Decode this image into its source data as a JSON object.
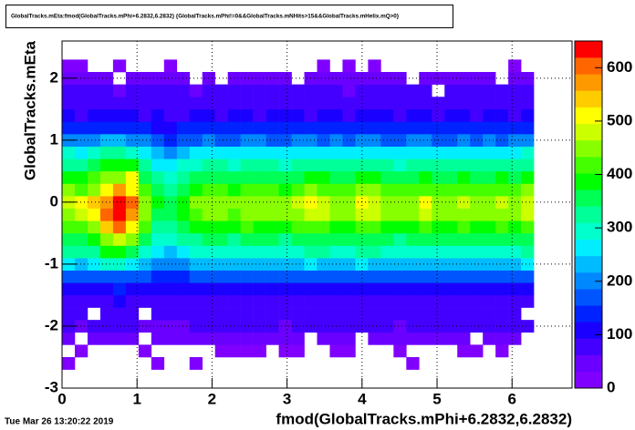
{
  "chart_data": {
    "type": "heatmap",
    "title": "GlobalTracks.mEta:fmod(GlobalTracks.mPhi+6.2832,6.2832) {GlobalTracks.mPhi!=0&&GlobalTracks.mNHits>15&&GlobalTracks.mHelix.mQ>0}",
    "xlabel": "fmod(GlobalTracks.mPhi+6.2832,6.2832)",
    "ylabel": "GlobalTracks.mEta",
    "timestamp": "Tue Mar 26 13:20:22 2019",
    "xlim": [
      0,
      6.8
    ],
    "ylim": [
      -3,
      2.6
    ],
    "zlim": [
      0,
      650
    ],
    "xticks": [
      0,
      1,
      2,
      3,
      4,
      5,
      6
    ],
    "yticks": [
      -3,
      -2,
      -1,
      0,
      1,
      2
    ],
    "zticks": [
      0,
      100,
      200,
      300,
      400,
      500,
      600
    ],
    "grid": true,
    "palette": [
      "#8000ff",
      "#6a00ff",
      "#4400ff",
      "#1a00ff",
      "#0022ff",
      "#0055ff",
      "#0088ff",
      "#00bbff",
      "#00eeff",
      "#00ffcc",
      "#00ff99",
      "#00ff55",
      "#00ff00",
      "#44ff00",
      "#88ff00",
      "#ccff00",
      "#ffff00",
      "#ffcc00",
      "#ff9900",
      "#ff6600",
      "#ff0000"
    ],
    "xbins": [
      0,
      0.17,
      0.34,
      0.51,
      0.68,
      0.85,
      1.02,
      1.19,
      1.36,
      1.53,
      1.7,
      1.87,
      2.04,
      2.21,
      2.38,
      2.55,
      2.72,
      2.89,
      3.06,
      3.23,
      3.4,
      3.57,
      3.74,
      3.91,
      4.08,
      4.25,
      4.42,
      4.59,
      4.76,
      4.93,
      5.1,
      5.27,
      5.44,
      5.61,
      5.78,
      5.95,
      6.12,
      6.29
    ],
    "ybins": [
      -2.7,
      -2.5,
      -2.3,
      -2.1,
      -1.9,
      -1.7,
      -1.5,
      -1.3,
      -1.1,
      -0.9,
      -0.7,
      -0.5,
      -0.3,
      -0.1,
      0.1,
      0.3,
      0.5,
      0.7,
      0.9,
      1.1,
      1.3,
      1.5,
      1.7,
      1.9,
      2.1,
      2.3
    ],
    "z": [
      [
        20,
        0,
        0,
        0,
        0,
        0,
        0,
        20,
        0,
        0,
        20,
        0,
        0,
        0,
        0,
        0,
        0,
        0,
        0,
        0,
        0,
        0,
        0,
        0,
        0,
        0,
        0,
        20,
        0,
        0,
        0,
        0,
        0,
        0,
        0,
        0,
        0
      ],
      [
        0,
        20,
        0,
        0,
        0,
        0,
        20,
        0,
        0,
        0,
        0,
        0,
        20,
        20,
        20,
        20,
        0,
        20,
        20,
        0,
        0,
        20,
        20,
        0,
        0,
        0,
        20,
        0,
        0,
        0,
        0,
        20,
        20,
        0,
        20,
        0,
        0
      ],
      [
        55,
        0,
        52,
        58,
        60,
        55,
        0,
        50,
        48,
        52,
        54,
        56,
        55,
        54,
        56,
        55,
        54,
        52,
        56,
        0,
        55,
        54,
        56,
        0,
        57,
        55,
        52,
        54,
        56,
        54,
        55,
        56,
        0,
        55,
        56,
        54,
        0
      ],
      [
        65,
        60,
        62,
        68,
        70,
        65,
        60,
        58,
        55,
        60,
        62,
        65,
        63,
        62,
        65,
        63,
        62,
        60,
        65,
        66,
        65,
        63,
        62,
        66,
        65,
        63,
        60,
        62,
        65,
        62,
        63,
        65,
        62,
        63,
        65,
        62,
        65
      ],
      [
        75,
        70,
        0,
        78,
        80,
        75,
        0,
        68,
        65,
        70,
        72,
        75,
        73,
        72,
        75,
        73,
        72,
        70,
        75,
        76,
        75,
        73,
        72,
        76,
        75,
        73,
        70,
        72,
        75,
        72,
        73,
        75,
        72,
        73,
        75,
        72,
        0
      ],
      [
        90,
        85,
        88,
        92,
        95,
        90,
        85,
        80,
        78,
        82,
        85,
        88,
        86,
        85,
        88,
        86,
        85,
        84,
        88,
        90,
        88,
        86,
        85,
        90,
        88,
        86,
        84,
        85,
        88,
        85,
        86,
        88,
        85,
        86,
        88,
        85,
        90
      ],
      [
        115,
        110,
        118,
        120,
        125,
        118,
        110,
        100,
        95,
        105,
        110,
        112,
        110,
        108,
        114,
        112,
        110,
        108,
        114,
        116,
        114,
        112,
        110,
        116,
        114,
        112,
        108,
        110,
        114,
        110,
        112,
        114,
        110,
        112,
        114,
        110,
        116
      ],
      [
        165,
        160,
        170,
        180,
        185,
        175,
        160,
        140,
        135,
        145,
        155,
        160,
        158,
        155,
        162,
        160,
        158,
        155,
        162,
        165,
        162,
        160,
        158,
        165,
        162,
        160,
        155,
        158,
        162,
        158,
        160,
        162,
        158,
        160,
        162,
        158,
        165
      ],
      [
        250,
        245,
        260,
        280,
        290,
        270,
        240,
        200,
        190,
        205,
        230,
        240,
        235,
        230,
        245,
        240,
        235,
        230,
        245,
        250,
        245,
        240,
        235,
        250,
        245,
        240,
        230,
        235,
        245,
        235,
        240,
        245,
        235,
        240,
        245,
        235,
        250
      ],
      [
        310,
        315,
        340,
        380,
        400,
        370,
        300,
        250,
        240,
        260,
        290,
        300,
        295,
        290,
        305,
        300,
        295,
        290,
        305,
        315,
        310,
        300,
        295,
        315,
        310,
        300,
        290,
        295,
        305,
        295,
        300,
        305,
        295,
        300,
        305,
        295,
        315
      ],
      [
        360,
        370,
        400,
        460,
        480,
        450,
        360,
        300,
        290,
        310,
        340,
        350,
        345,
        340,
        355,
        350,
        345,
        340,
        360,
        370,
        365,
        350,
        345,
        370,
        365,
        350,
        340,
        345,
        360,
        345,
        350,
        360,
        345,
        350,
        360,
        345,
        370
      ],
      [
        410,
        420,
        460,
        540,
        600,
        520,
        410,
        340,
        330,
        350,
        390,
        400,
        395,
        390,
        405,
        400,
        395,
        390,
        410,
        420,
        415,
        400,
        395,
        420,
        415,
        400,
        390,
        395,
        410,
        395,
        400,
        410,
        395,
        400,
        410,
        395,
        420
      ],
      [
        460,
        480,
        520,
        590,
        620,
        580,
        450,
        370,
        360,
        380,
        430,
        450,
        440,
        430,
        450,
        445,
        440,
        435,
        460,
        480,
        470,
        450,
        445,
        490,
        480,
        450,
        435,
        445,
        470,
        440,
        450,
        460,
        440,
        450,
        460,
        445,
        470
      ],
      [
        470,
        500,
        540,
        580,
        630,
        600,
        460,
        380,
        370,
        390,
        440,
        460,
        450,
        440,
        460,
        455,
        450,
        445,
        470,
        500,
        480,
        460,
        455,
        500,
        490,
        460,
        445,
        455,
        500,
        450,
        460,
        470,
        450,
        460,
        470,
        455,
        480
      ],
      [
        440,
        430,
        460,
        500,
        560,
        520,
        420,
        350,
        340,
        360,
        400,
        420,
        410,
        400,
        420,
        415,
        410,
        400,
        420,
        440,
        430,
        420,
        415,
        440,
        435,
        420,
        405,
        415,
        430,
        410,
        420,
        430,
        410,
        420,
        430,
        415,
        440
      ],
      [
        390,
        380,
        410,
        440,
        460,
        500,
        370,
        310,
        300,
        320,
        350,
        370,
        360,
        355,
        370,
        365,
        360,
        350,
        370,
        380,
        375,
        365,
        360,
        385,
        380,
        370,
        355,
        365,
        380,
        360,
        370,
        375,
        360,
        370,
        380,
        365,
        390
      ],
      [
        340,
        330,
        360,
        380,
        400,
        380,
        320,
        270,
        260,
        280,
        300,
        320,
        310,
        305,
        320,
        315,
        310,
        300,
        320,
        330,
        325,
        315,
        310,
        330,
        325,
        320,
        305,
        315,
        330,
        310,
        320,
        325,
        310,
        320,
        330,
        315,
        340
      ],
      [
        280,
        270,
        290,
        310,
        320,
        300,
        260,
        220,
        210,
        230,
        250,
        260,
        255,
        250,
        265,
        260,
        255,
        250,
        260,
        270,
        265,
        260,
        255,
        270,
        265,
        260,
        250,
        260,
        270,
        255,
        260,
        265,
        250,
        260,
        270,
        255,
        280
      ],
      [
        200,
        190,
        210,
        220,
        230,
        215,
        190,
        160,
        150,
        170,
        180,
        190,
        185,
        180,
        195,
        190,
        185,
        180,
        190,
        195,
        185,
        190,
        180,
        195,
        190,
        185,
        180,
        190,
        195,
        185,
        180,
        190,
        185,
        195,
        180,
        190,
        200
      ],
      [
        140,
        130,
        135,
        150,
        145,
        140,
        130,
        120,
        115,
        125,
        130,
        140,
        135,
        130,
        140,
        145,
        135,
        130,
        140,
        135,
        145,
        140,
        130,
        135,
        140,
        130,
        135,
        140,
        145,
        130,
        135,
        140,
        130,
        135,
        140,
        135,
        130
      ],
      [
        95,
        90,
        100,
        95,
        105,
        100,
        90,
        95,
        85,
        90,
        95,
        100,
        90,
        95,
        100,
        90,
        95,
        105,
        95,
        90,
        100,
        95,
        90,
        95,
        100,
        95,
        90,
        100,
        95,
        90,
        95,
        100,
        90,
        95,
        100,
        90,
        95
      ],
      [
        80,
        75,
        85,
        80,
        90,
        80,
        75,
        85,
        80,
        75,
        80,
        85,
        80,
        75,
        90,
        80,
        85,
        75,
        80,
        85,
        80,
        75,
        90,
        80,
        85,
        80,
        75,
        85,
        80,
        90,
        80,
        75,
        85,
        80,
        75,
        85,
        80
      ],
      [
        70,
        65,
        75,
        70,
        60,
        75,
        70,
        65,
        70,
        75,
        60,
        70,
        65,
        75,
        70,
        65,
        70,
        75,
        70,
        65,
        70,
        75,
        60,
        70,
        65,
        75,
        70,
        65,
        70,
        0,
        75,
        70,
        65,
        70,
        75,
        70,
        65
      ],
      [
        50,
        55,
        45,
        50,
        0,
        55,
        45,
        50,
        60,
        45,
        0,
        50,
        0,
        55,
        50,
        45,
        60,
        50,
        0,
        55,
        50,
        45,
        55,
        50,
        60,
        45,
        50,
        0,
        55,
        50,
        45,
        60,
        50,
        55,
        0,
        50,
        45
      ],
      [
        20,
        20,
        0,
        0,
        20,
        0,
        0,
        0,
        20,
        0,
        0,
        0,
        0,
        0,
        0,
        0,
        0,
        0,
        0,
        0,
        20,
        0,
        20,
        0,
        20,
        0,
        0,
        0,
        0,
        0,
        0,
        0,
        0,
        0,
        0,
        20,
        0
      ]
    ]
  }
}
